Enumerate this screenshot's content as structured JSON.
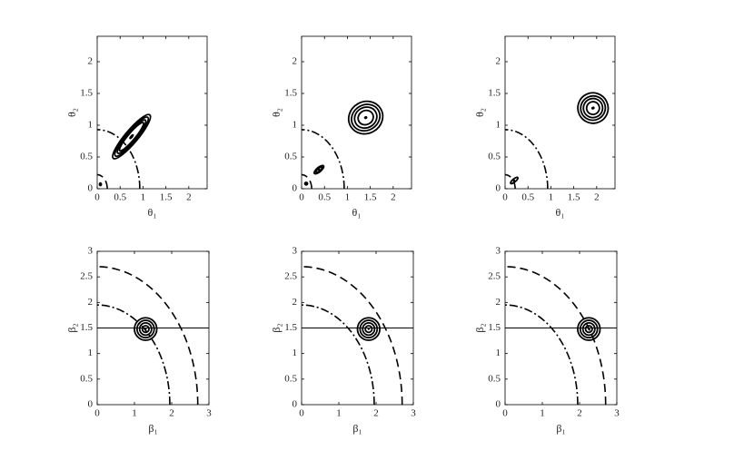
{
  "chart_data": [
    {
      "type": "contour",
      "xlabel": "θ₁",
      "ylabel": "θ₂",
      "xlim": [
        0,
        2.4
      ],
      "ylim": [
        0,
        2.4
      ],
      "xticks": [
        0,
        0.5,
        1,
        1.5,
        2
      ],
      "yticks": [
        0,
        0.5,
        1,
        1.5,
        2
      ],
      "arcs": [
        {
          "r": 0.93,
          "style": "dashdot"
        },
        {
          "r": 0.22,
          "style": "dashed"
        }
      ],
      "contours": [
        {
          "x": 0.75,
          "y": 0.82,
          "angle": -50,
          "rx": [
            0.62,
            0.55,
            0.47,
            0.4,
            0.05
          ],
          "ry": [
            0.1,
            0.085,
            0.07,
            0.055,
            0.01
          ]
        },
        {
          "x": 0.07,
          "y": 0.07,
          "angle": 0,
          "rx": [
            0.02
          ],
          "ry": [
            0.02
          ]
        }
      ]
    },
    {
      "type": "contour",
      "xlabel": "θ₁",
      "ylabel": "θ₂",
      "xlim": [
        0,
        2.4
      ],
      "ylim": [
        0,
        2.4
      ],
      "xticks": [
        0,
        0.5,
        1,
        1.5,
        2
      ],
      "yticks": [
        0,
        0.5,
        1,
        1.5,
        2
      ],
      "arcs": [
        {
          "r": 0.93,
          "style": "dashdot"
        },
        {
          "r": 0.22,
          "style": "dashed"
        }
      ],
      "contours": [
        {
          "x": 1.4,
          "y": 1.12,
          "angle": -30,
          "rx": [
            0.38,
            0.32,
            0.25,
            0.17,
            0.02
          ],
          "ry": [
            0.25,
            0.2,
            0.16,
            0.11,
            0.01
          ]
        },
        {
          "x": 0.38,
          "y": 0.3,
          "angle": -40,
          "rx": [
            0.13,
            0.09
          ],
          "ry": [
            0.035,
            0.02
          ]
        },
        {
          "x": 0.1,
          "y": 0.08,
          "angle": 0,
          "rx": [
            0.03
          ],
          "ry": [
            0.02
          ]
        }
      ]
    },
    {
      "type": "contour",
      "xlabel": "θ₁",
      "ylabel": "θ₂",
      "xlim": [
        0,
        2.4
      ],
      "ylim": [
        0,
        2.4
      ],
      "xticks": [
        0,
        0.5,
        1,
        1.5,
        2
      ],
      "yticks": [
        0,
        0.5,
        1,
        1.5,
        2
      ],
      "arcs": [
        {
          "r": 0.93,
          "style": "dashdot"
        },
        {
          "r": 0.22,
          "style": "dashed"
        }
      ],
      "contours": [
        {
          "x": 1.92,
          "y": 1.27,
          "angle": -25,
          "rx": [
            0.33,
            0.27,
            0.21,
            0.14,
            0.02
          ],
          "ry": [
            0.24,
            0.19,
            0.15,
            0.1,
            0.01
          ]
        },
        {
          "x": 0.2,
          "y": 0.13,
          "angle": -40,
          "rx": [
            0.1
          ],
          "ry": [
            0.025
          ]
        }
      ]
    },
    {
      "type": "contour",
      "xlabel": "β₁",
      "ylabel": "β₂",
      "xlim": [
        0,
        3
      ],
      "ylim": [
        0,
        3
      ],
      "xticks": [
        0,
        1,
        2,
        3
      ],
      "yticks": [
        0,
        0.5,
        1,
        1.5,
        2,
        2.5,
        3
      ],
      "arcs": [
        {
          "r": 2.7,
          "style": "dashed"
        },
        {
          "r": 1.95,
          "style": "dashdot"
        }
      ],
      "hline": 1.5,
      "contours": [
        {
          "x": 1.3,
          "y": 1.48,
          "angle": 0,
          "rx": [
            0.3,
            0.23,
            0.16,
            0.09
          ],
          "ry": [
            0.22,
            0.17,
            0.12,
            0.065
          ]
        }
      ]
    },
    {
      "type": "contour",
      "xlabel": "β₁",
      "ylabel": "β₂",
      "xlim": [
        0,
        3
      ],
      "ylim": [
        0,
        3
      ],
      "xticks": [
        0,
        1,
        2,
        3
      ],
      "yticks": [
        0,
        0.5,
        1,
        1.5,
        2,
        2.5,
        3
      ],
      "arcs": [
        {
          "r": 2.7,
          "style": "dashed"
        },
        {
          "r": 1.95,
          "style": "dashdot"
        }
      ],
      "hline": 1.5,
      "contours": [
        {
          "x": 1.8,
          "y": 1.48,
          "angle": 0,
          "rx": [
            0.3,
            0.23,
            0.16,
            0.09
          ],
          "ry": [
            0.22,
            0.17,
            0.12,
            0.065
          ]
        }
      ]
    },
    {
      "type": "contour",
      "xlabel": "β₁",
      "ylabel": "β₂",
      "xlim": [
        0,
        3
      ],
      "ylim": [
        0,
        3
      ],
      "xticks": [
        0,
        1,
        2,
        3
      ],
      "yticks": [
        0,
        0.5,
        1,
        1.5,
        2,
        2.5,
        3
      ],
      "arcs": [
        {
          "r": 2.7,
          "style": "dashed"
        },
        {
          "r": 1.95,
          "style": "dashdot"
        }
      ],
      "hline": 1.5,
      "contours": [
        {
          "x": 2.25,
          "y": 1.48,
          "angle": 0,
          "rx": [
            0.3,
            0.23,
            0.16,
            0.09
          ],
          "ry": [
            0.22,
            0.17,
            0.12,
            0.065
          ]
        }
      ]
    }
  ]
}
